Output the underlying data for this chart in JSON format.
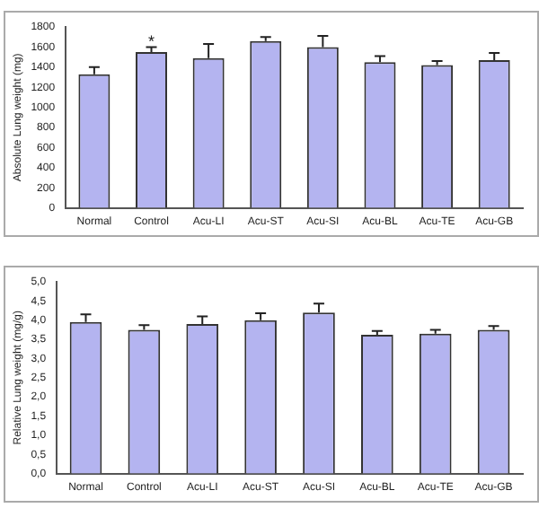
{
  "chart_data": [
    {
      "type": "bar",
      "ylabel": "Absolute Lung weight (mg)",
      "categories": [
        "Normal",
        "Control",
        "Acu-LI",
        "Acu-ST",
        "Acu-SI",
        "Acu-BL",
        "Acu-TE",
        "Acu-GB"
      ],
      "values": [
        1330,
        1550,
        1490,
        1660,
        1600,
        1450,
        1420,
        1470
      ],
      "errors": [
        [
          1330,
          1400
        ],
        [
          1550,
          1600
        ],
        [
          1490,
          1630
        ],
        [
          1660,
          1700
        ],
        [
          1600,
          1710
        ],
        [
          1450,
          1510
        ],
        [
          1420,
          1460
        ],
        [
          1470,
          1540
        ]
      ],
      "color": "#b4b4f0",
      "ylim": [
        0,
        1800
      ],
      "yticks": [
        0,
        200,
        400,
        600,
        800,
        1000,
        1200,
        1400,
        1600,
        1800
      ],
      "grid": false,
      "annotations": [
        {
          "text": "*",
          "x": "Control",
          "y": 1650
        }
      ]
    },
    {
      "type": "bar",
      "ylabel": "Relative Lung weight (mg/g)",
      "categories": [
        "Normal",
        "Control",
        "Acu-LI",
        "Acu-ST",
        "Acu-SI",
        "Acu-BL",
        "Acu-TE",
        "Acu-GB"
      ],
      "values": [
        3.95,
        3.75,
        3.9,
        4.0,
        4.2,
        3.62,
        3.65,
        3.75
      ],
      "errors": [
        [
          3.95,
          4.15
        ],
        [
          3.75,
          3.87
        ],
        [
          3.9,
          4.1
        ],
        [
          4.0,
          4.18
        ],
        [
          4.2,
          4.43
        ],
        [
          3.62,
          3.72
        ],
        [
          3.65,
          3.75
        ],
        [
          3.75,
          3.85
        ]
      ],
      "color": "#b4b4f0",
      "ylim": [
        0,
        5
      ],
      "yticks": [
        {
          "value": 0,
          "label": "0,0"
        },
        {
          "value": 0.5,
          "label": "0,5"
        },
        {
          "value": 1,
          "label": "1,0"
        },
        {
          "value": 1.5,
          "label": "1,5"
        },
        {
          "value": 2,
          "label": "2,0"
        },
        {
          "value": 2.5,
          "label": "2,5"
        },
        {
          "value": 3,
          "label": "3,0"
        },
        {
          "value": 3.5,
          "label": "3,5"
        },
        {
          "value": 4,
          "label": "4,0"
        },
        {
          "value": 4.5,
          "label": "4,5"
        },
        {
          "value": 5,
          "label": "5,0"
        }
      ],
      "grid": false
    }
  ]
}
